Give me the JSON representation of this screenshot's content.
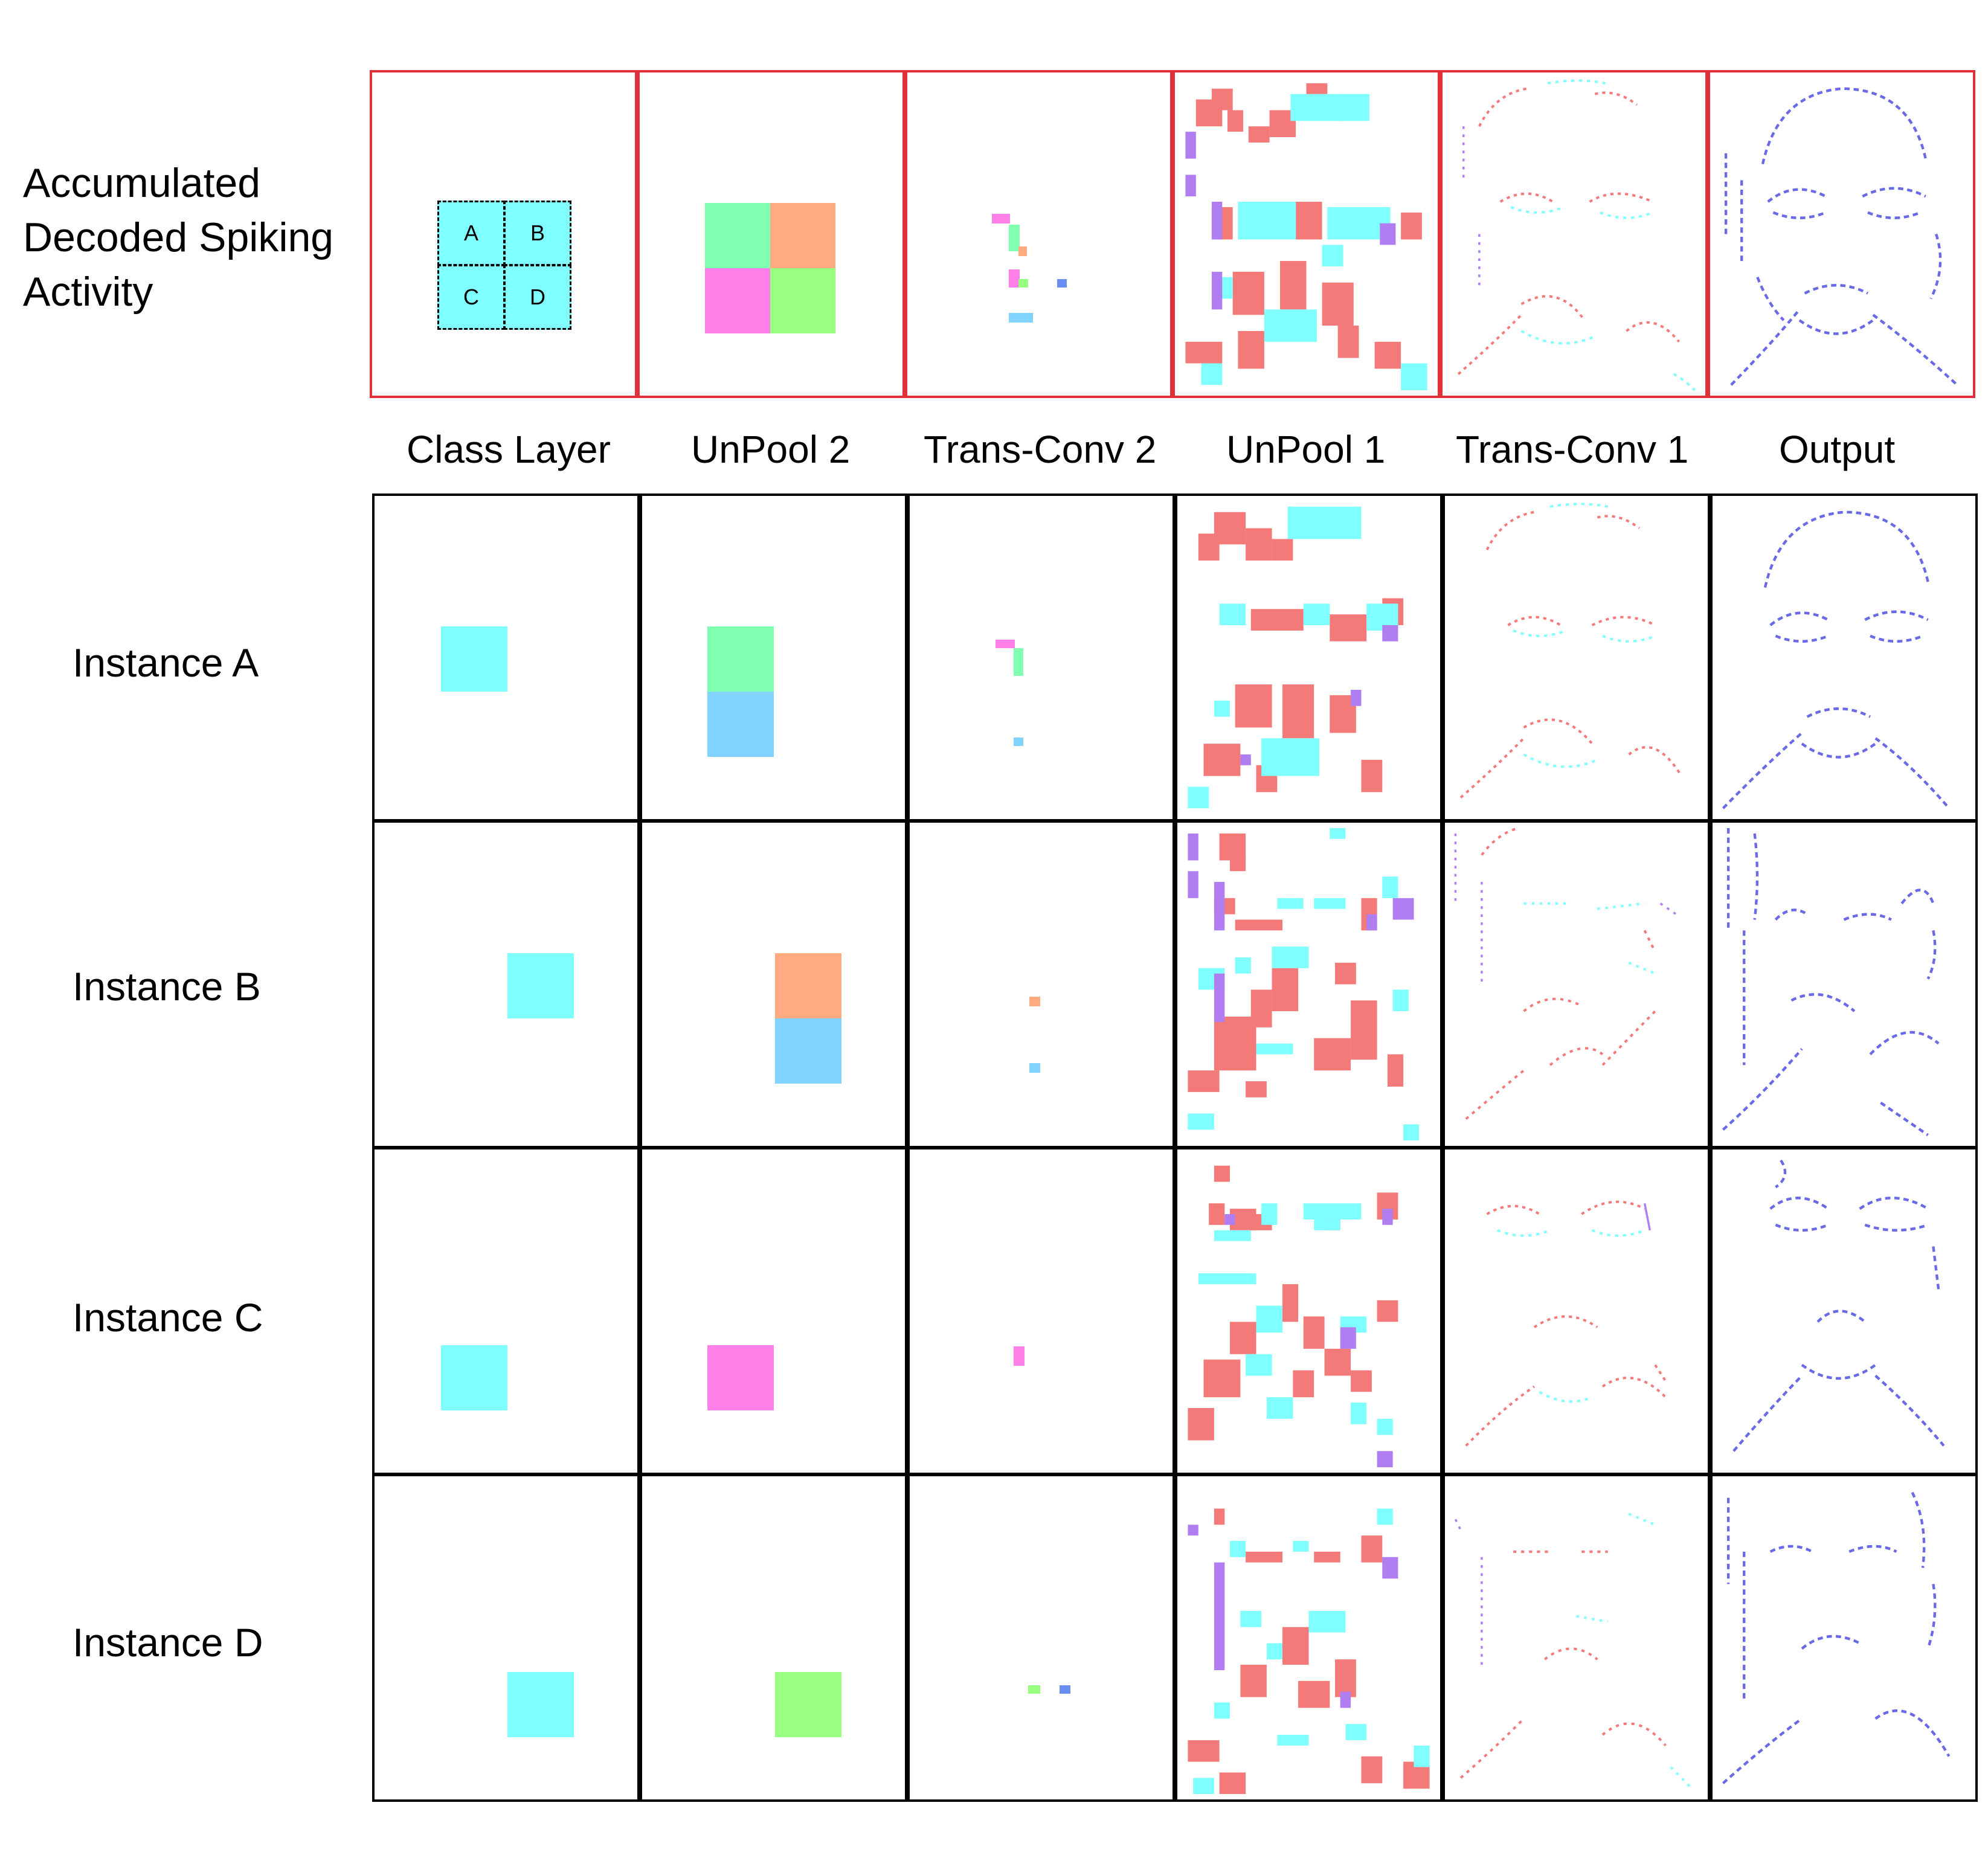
{
  "row_labels": {
    "top": [
      "Accumulated",
      "Decoded Spiking",
      "Activity"
    ],
    "instances": [
      "Instance A",
      "Instance B",
      "Instance C",
      "Instance D"
    ]
  },
  "column_labels": [
    "Class Layer",
    "UnPool 2",
    "Trans-Conv 2",
    "UnPool 1",
    "Trans-Conv 1",
    "Output"
  ],
  "class_layer_grid": [
    "A",
    "B",
    "C",
    "D"
  ],
  "colors": {
    "cyan": "#7fffff",
    "green": "#80ffb0",
    "orange": "#ffaa80",
    "magenta": "#ff80e8",
    "lime": "#99ff80",
    "sky": "#80d4ff",
    "salmon": "#f47a7a",
    "violet": "#b07ef0",
    "blue": "#6a6ae6",
    "red_border": "#e0303a"
  }
}
